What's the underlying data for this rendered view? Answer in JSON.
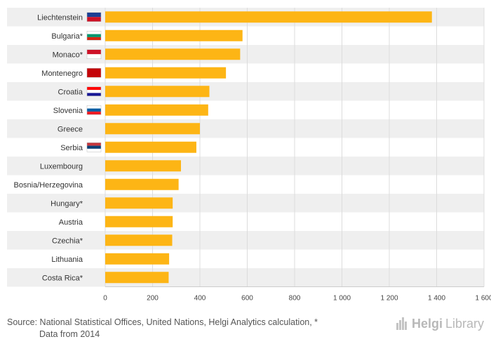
{
  "chart_data": {
    "type": "bar",
    "orientation": "horizontal",
    "categories": [
      "Liechtenstein",
      "Bulgaria*",
      "Monaco*",
      "Montenegro",
      "Croatia",
      "Slovenia",
      "Greece",
      "Serbia",
      "Luxembourg",
      "Bosnia/Herzegovina",
      "Hungary*",
      "Austria",
      "Czechia*",
      "Lithuania",
      "Costa Rica*"
    ],
    "values": [
      1380,
      580,
      570,
      510,
      440,
      435,
      400,
      385,
      320,
      310,
      285,
      285,
      283,
      270,
      268
    ],
    "xlim": [
      0,
      1600
    ],
    "xticks": [
      0,
      200,
      400,
      600,
      800,
      1000,
      1200,
      1400,
      1600
    ],
    "xtick_labels": [
      "0",
      "200",
      "400",
      "600",
      "800",
      "1 000",
      "1 200",
      "1 400",
      "1 600"
    ],
    "bar_color": "#fdb515",
    "row_band_color": "#efefef",
    "grid": true,
    "flags": {
      "Liechtenstein": "liechtenstein-flag",
      "Bulgaria*": "bulgaria-flag",
      "Monaco*": "monaco-flag",
      "Montenegro": "montenegro-flag",
      "Croatia": "croatia-flag",
      "Slovenia": "slovenia-flag",
      "Serbia": "serbia-flag"
    }
  },
  "footer": {
    "source_line1": "Source: National Statistical Offices, United Nations, Helgi Analytics calculation, *",
    "source_line2": "Data from 2014",
    "logo_part1": "Helgi",
    "logo_part2": "Library"
  }
}
